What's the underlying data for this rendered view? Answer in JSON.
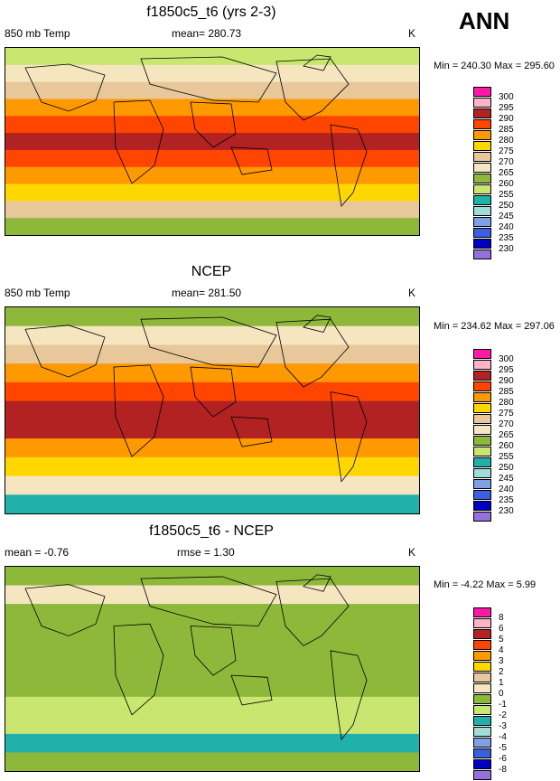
{
  "header": {
    "season": "ANN"
  },
  "panels": [
    {
      "title": "f1850c5_t6 (yrs 2-3)",
      "left": "850 mb Temp",
      "center": "mean= 280.73",
      "units": "K",
      "minmax": "Min = 240.30 Max = 295.60"
    },
    {
      "title": "NCEP",
      "left": "850 mb Temp",
      "center": "mean= 281.50",
      "units": "K",
      "minmax": "Min = 234.62 Max = 297.06"
    },
    {
      "title": "f1850c5_t6 - NCEP",
      "left": "mean =  -0.76",
      "center": "rmse =   1.30",
      "units": "K",
      "minmax": "Min =  -4.22 Max =   5.99"
    }
  ],
  "chart_data": [
    {
      "type": "heatmap",
      "title": "f1850c5_t6 (yrs 2-3)",
      "variable": "850 mb Temp",
      "units": "K",
      "mean": 280.73,
      "min": 240.3,
      "max": 295.6,
      "levels": [
        "300",
        "295",
        "290",
        "285",
        "280",
        "275",
        "270",
        "265",
        "260",
        "255",
        "250",
        "245",
        "240",
        "235",
        "230"
      ],
      "level_colors": [
        "#ff1aa6",
        "#ffb3c6",
        "#b22222",
        "#ff4500",
        "#ff9900",
        "#ffd700",
        "#e8c89a",
        "#f5e6c0",
        "#8db83a",
        "#c8e670",
        "#20b2aa",
        "#a0dcd8",
        "#7f9fe6",
        "#3a5fe0",
        "#0000c0",
        "#9370db"
      ],
      "zonal_profile_K": [
        258,
        265,
        272,
        280,
        287,
        291,
        289,
        283,
        276,
        270,
        262
      ]
    },
    {
      "type": "heatmap",
      "title": "NCEP",
      "variable": "850 mb Temp",
      "units": "K",
      "mean": 281.5,
      "min": 234.62,
      "max": 297.06,
      "levels": [
        "300",
        "295",
        "290",
        "285",
        "280",
        "275",
        "270",
        "265",
        "260",
        "255",
        "250",
        "245",
        "240",
        "235",
        "230"
      ],
      "level_colors": [
        "#ff1aa6",
        "#ffb3c6",
        "#b22222",
        "#ff4500",
        "#ff9900",
        "#ffd700",
        "#e8c89a",
        "#f5e6c0",
        "#8db83a",
        "#c8e670",
        "#20b2aa",
        "#a0dcd8",
        "#7f9fe6",
        "#3a5fe0",
        "#0000c0",
        "#9370db"
      ],
      "zonal_profile_K": [
        262,
        266,
        273,
        281,
        288,
        291,
        290,
        283,
        276,
        268,
        250
      ]
    },
    {
      "type": "heatmap",
      "title": "f1850c5_t6 - NCEP",
      "units": "K",
      "mean": -0.76,
      "rmse": 1.3,
      "min": -4.22,
      "max": 5.99,
      "levels": [
        "8",
        "6",
        "5",
        "4",
        "3",
        "2",
        "1",
        "0",
        "-1",
        "-2",
        "-3",
        "-4",
        "-5",
        "-6",
        "-8"
      ],
      "level_colors": [
        "#ff1aa6",
        "#ffb3c6",
        "#b22222",
        "#ff4500",
        "#ff9900",
        "#ffd700",
        "#e8c89a",
        "#f5e6c0",
        "#8db83a",
        "#c8e670",
        "#20b2aa",
        "#a0dcd8",
        "#7f9fe6",
        "#3a5fe0",
        "#0000c0",
        "#9370db"
      ],
      "zonal_profile_K": [
        -1,
        0,
        -1,
        -1,
        -0.5,
        -0.5,
        -1,
        -1.5,
        -2,
        -3,
        -1
      ]
    }
  ]
}
